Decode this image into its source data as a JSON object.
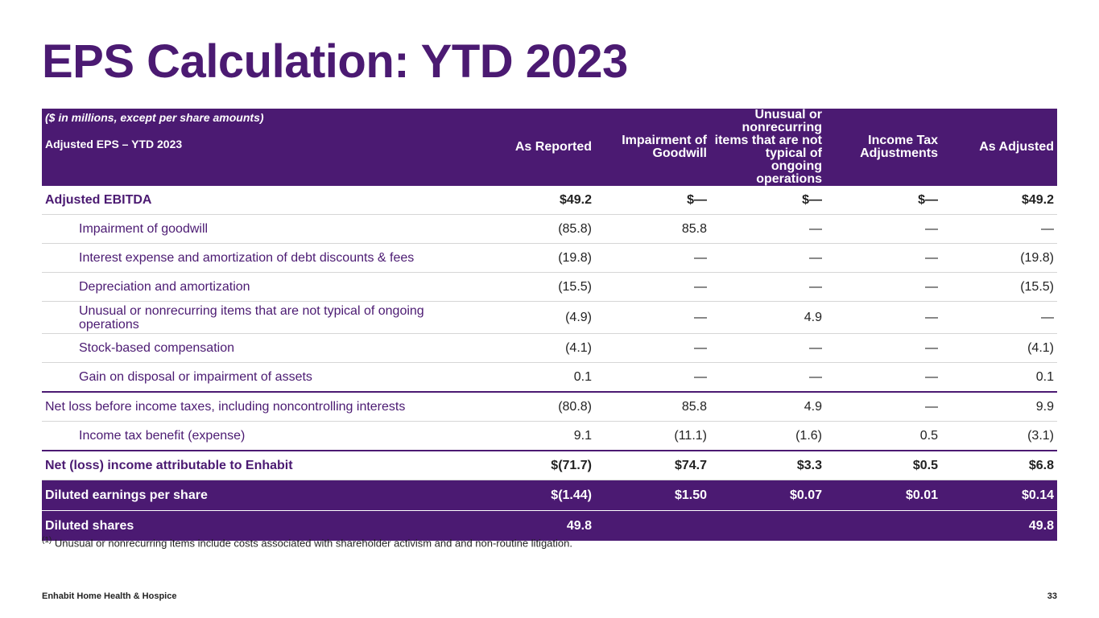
{
  "title": "EPS Calculation: YTD 2023",
  "table": {
    "note": "($ in millions, except per share amounts)",
    "label_header": "Adjusted EPS – YTD 2023",
    "columns": [
      "As Reported",
      "Impairment of Goodwill",
      "Unusual or nonrecurring items that are not typical of ongoing operations",
      "Income Tax Adjustments",
      "As Adjusted"
    ],
    "rows": [
      {
        "label": "Adjusted EBITDA",
        "values": [
          "$49.2",
          "$—",
          "$—",
          "$—",
          "$49.2"
        ]
      },
      {
        "label": "Impairment of goodwill",
        "values": [
          "(85.8)",
          "85.8",
          "—",
          "—",
          "—"
        ]
      },
      {
        "label": "Interest expense and amortization of debt discounts & fees",
        "values": [
          "(19.8)",
          "—",
          "—",
          "—",
          "(19.8)"
        ]
      },
      {
        "label": "Depreciation and amortization",
        "values": [
          "(15.5)",
          "—",
          "—",
          "—",
          "(15.5)"
        ]
      },
      {
        "label": "Unusual or nonrecurring items that are not typical of ongoing operations",
        "values": [
          "(4.9)",
          "—",
          "4.9",
          "—",
          "—"
        ]
      },
      {
        "label": "Stock-based compensation",
        "values": [
          "(4.1)",
          "—",
          "—",
          "—",
          "(4.1)"
        ]
      },
      {
        "label": "Gain on disposal or impairment of assets",
        "values": [
          "0.1",
          "—",
          "—",
          "—",
          "0.1"
        ]
      },
      {
        "label": "Net loss before income taxes, including noncontrolling interests",
        "values": [
          "(80.8)",
          "85.8",
          "4.9",
          "—",
          "9.9"
        ]
      },
      {
        "label": "Income tax benefit (expense)",
        "values": [
          "9.1",
          "(11.1)",
          "(1.6)",
          "0.5",
          "(3.1)"
        ]
      },
      {
        "label": "Net (loss) income attributable to Enhabit",
        "values": [
          "$(71.7)",
          "$74.7",
          "$3.3",
          "$0.5",
          "$6.8"
        ]
      },
      {
        "label": "Diluted earnings per share",
        "values": [
          "$(1.44)",
          "$1.50",
          "$0.07",
          "$0.01",
          "$0.14"
        ]
      },
      {
        "label": "Diluted shares",
        "values": [
          "49.8",
          "",
          "",
          "",
          "49.8"
        ]
      }
    ]
  },
  "footnote": {
    "marker": "(1)",
    "text": "Unusual or nonrecurring items include costs associated with shareholder activism and and non-routine litigation."
  },
  "footer": {
    "company": "Enhabit Home Health & Hospice",
    "page_number": "33"
  },
  "colors": {
    "brand_purple": "#4b1a72"
  }
}
